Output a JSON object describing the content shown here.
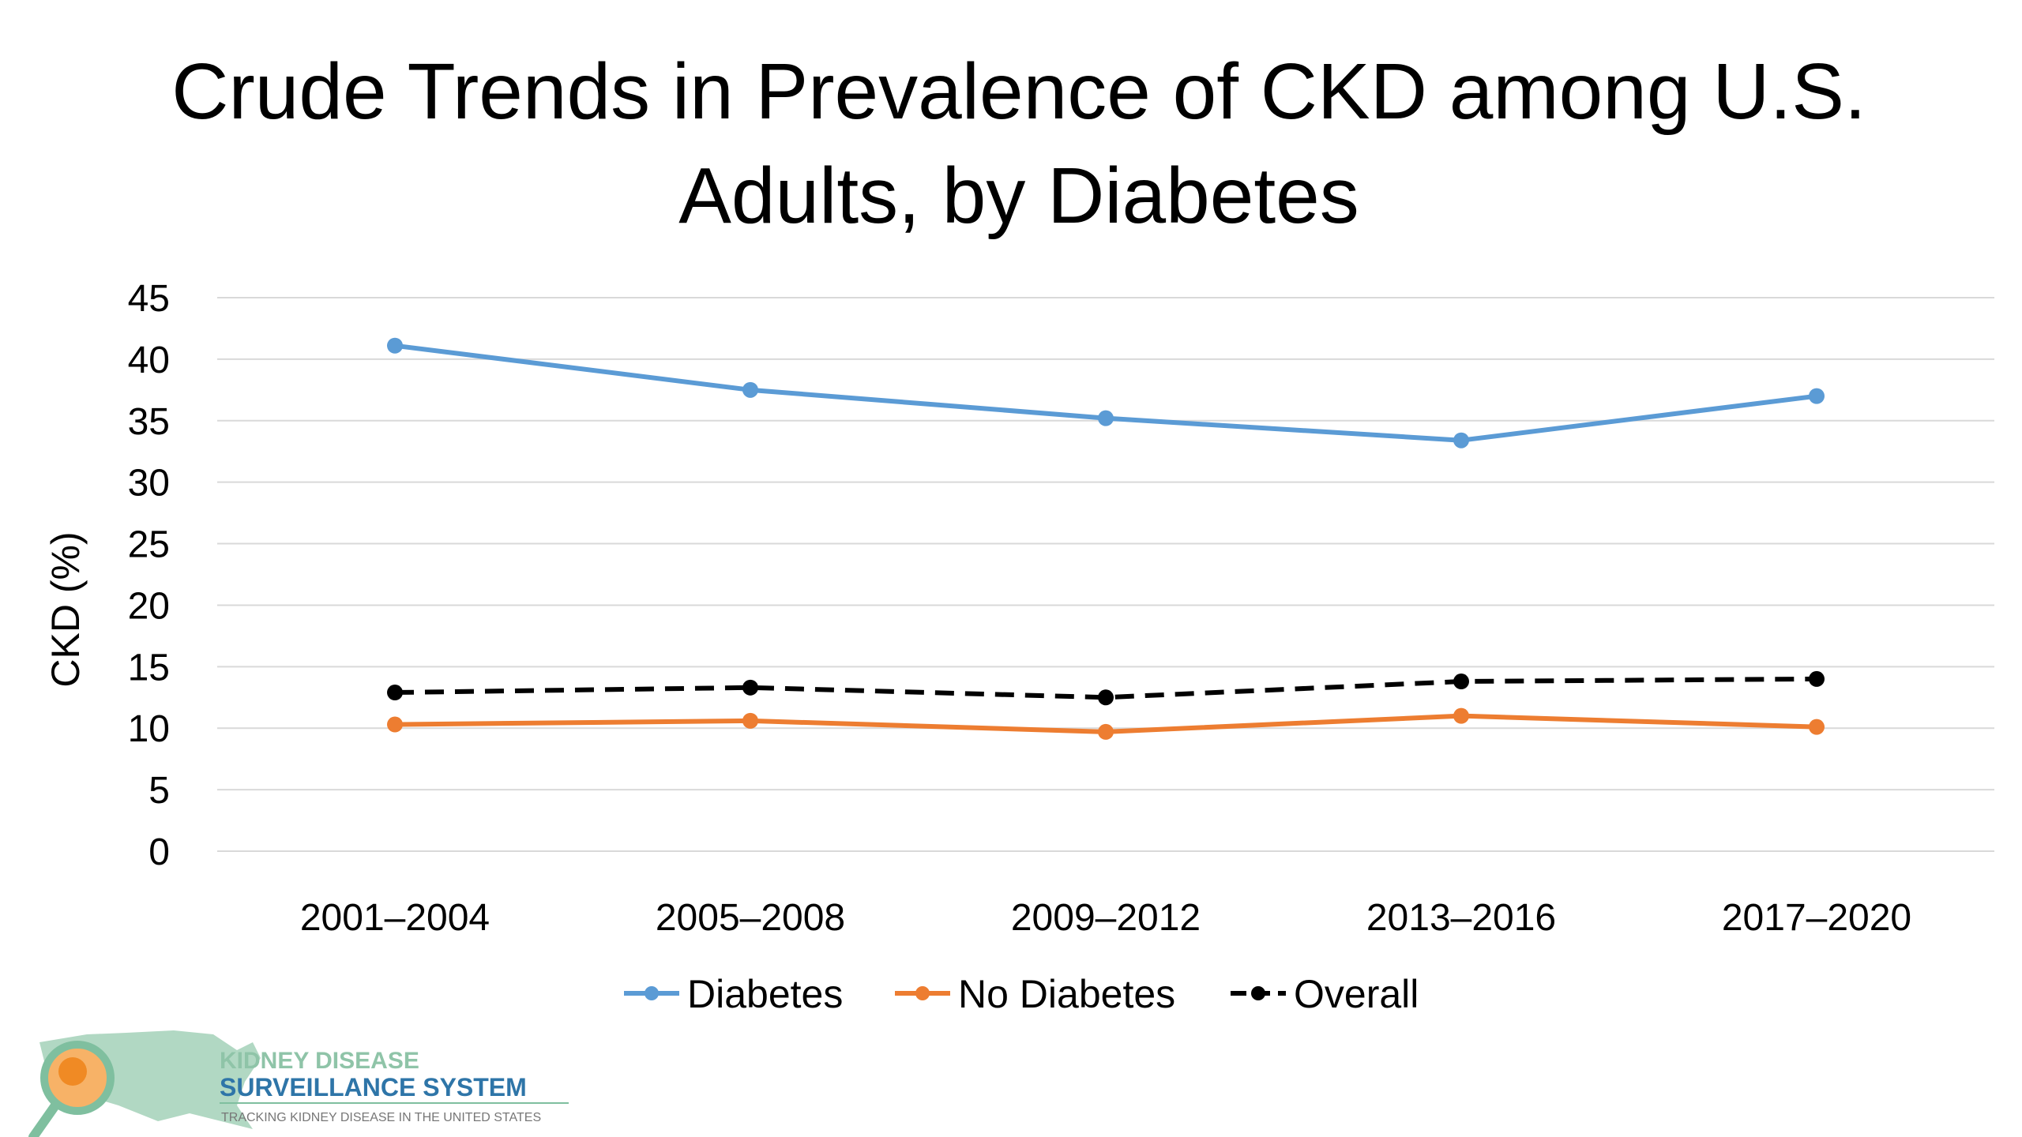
{
  "chart_data": {
    "type": "line",
    "title_lines": [
      "Crude Trends in Prevalence of CKD among U.S.",
      "Adults, by Diabetes"
    ],
    "xlabel": "",
    "ylabel": "CKD (%)",
    "categories": [
      "2001–2004",
      "2005–2008",
      "2009–2012",
      "2013–2016",
      "2017–2020"
    ],
    "ylim": [
      0,
      45
    ],
    "yticks": [
      "0",
      "5",
      "10",
      "15",
      "20",
      "25",
      "30",
      "35",
      "40",
      "45"
    ],
    "grid": true,
    "legend_position": "bottom",
    "series": [
      {
        "name": "Diabetes",
        "color": "#5b9bd5",
        "dash": "solid",
        "values": [
          41.1,
          37.5,
          35.2,
          33.4,
          37.0
        ]
      },
      {
        "name": "No Diabetes",
        "color": "#ed7d31",
        "dash": "solid",
        "values": [
          10.3,
          10.6,
          9.7,
          11.0,
          10.1
        ]
      },
      {
        "name": "Overall",
        "color": "#000000",
        "dash": "dashed",
        "values": [
          12.9,
          13.3,
          12.5,
          13.8,
          14.0
        ]
      }
    ]
  },
  "logo": {
    "line1": "KIDNEY DISEASE",
    "line2": "SURVEILLANCE SYSTEM",
    "line3": "TRACKING KIDNEY DISEASE IN THE UNITED STATES"
  }
}
